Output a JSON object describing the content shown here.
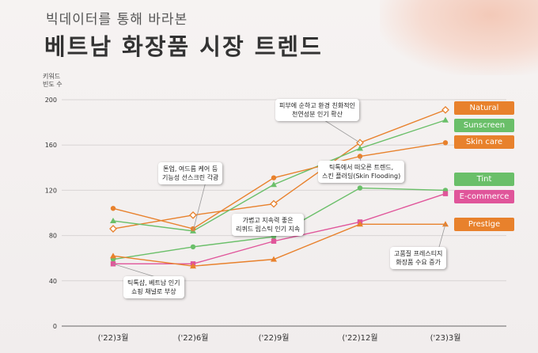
{
  "header": {
    "subtitle": "빅데이터를 통해 바라본",
    "title": "베트남 화장품 시장 트렌드"
  },
  "chart_data": {
    "type": "line",
    "ylabel_lines": [
      "키워드",
      "빈도 수"
    ],
    "ylim": [
      0,
      200
    ],
    "yticks": [
      "0",
      "40",
      "80",
      "120",
      "160",
      "200"
    ],
    "categories": [
      "('22)3월",
      "('22)6월",
      "('22)9월",
      "('22)12월",
      "('23)3월"
    ],
    "grid": true,
    "legend_position": "right",
    "series": [
      {
        "name": "Natural",
        "color": "#e8812c",
        "marker": "diamond",
        "values": [
          86,
          98,
          108,
          162,
          191
        ]
      },
      {
        "name": "Sunscreen",
        "color": "#6abf69",
        "marker": "triangle",
        "values": [
          93,
          84,
          125,
          157,
          182
        ]
      },
      {
        "name": "Skin care",
        "color": "#e8812c",
        "marker": "circle",
        "values": [
          104,
          86,
          131,
          150,
          162
        ]
      },
      {
        "name": "Tint",
        "color": "#6abf69",
        "marker": "circle",
        "values": [
          59,
          70,
          79,
          122,
          120
        ]
      },
      {
        "name": "E-commerce",
        "color": "#e0559a",
        "marker": "square",
        "values": [
          55,
          55,
          75,
          92,
          117
        ]
      },
      {
        "name": "Prestige",
        "color": "#e8812c",
        "marker": "triangle",
        "values": [
          62,
          53,
          59,
          90,
          90
        ]
      }
    ],
    "annotations": [
      {
        "lines": [
          "피부에 순하고 환경 친화적인",
          "천연성분 인기 확산"
        ]
      },
      {
        "lines": [
          "톤업, 여드름 케어 등",
          "기능성 선스크린 각광"
        ]
      },
      {
        "lines": [
          "틱톡에서 떠오른 트렌드,",
          "스킨 플러딩(Skin Flooding)"
        ]
      },
      {
        "lines": [
          "가볍고 지속력 좋은",
          "리퀴드 립스틱 인기 지속"
        ]
      },
      {
        "lines": [
          "고품질 프레스티지",
          "화장품 수요 증가"
        ]
      },
      {
        "lines": [
          "틱톡샵, 베트남 인기",
          "쇼핑 채널로 부상"
        ]
      }
    ]
  }
}
